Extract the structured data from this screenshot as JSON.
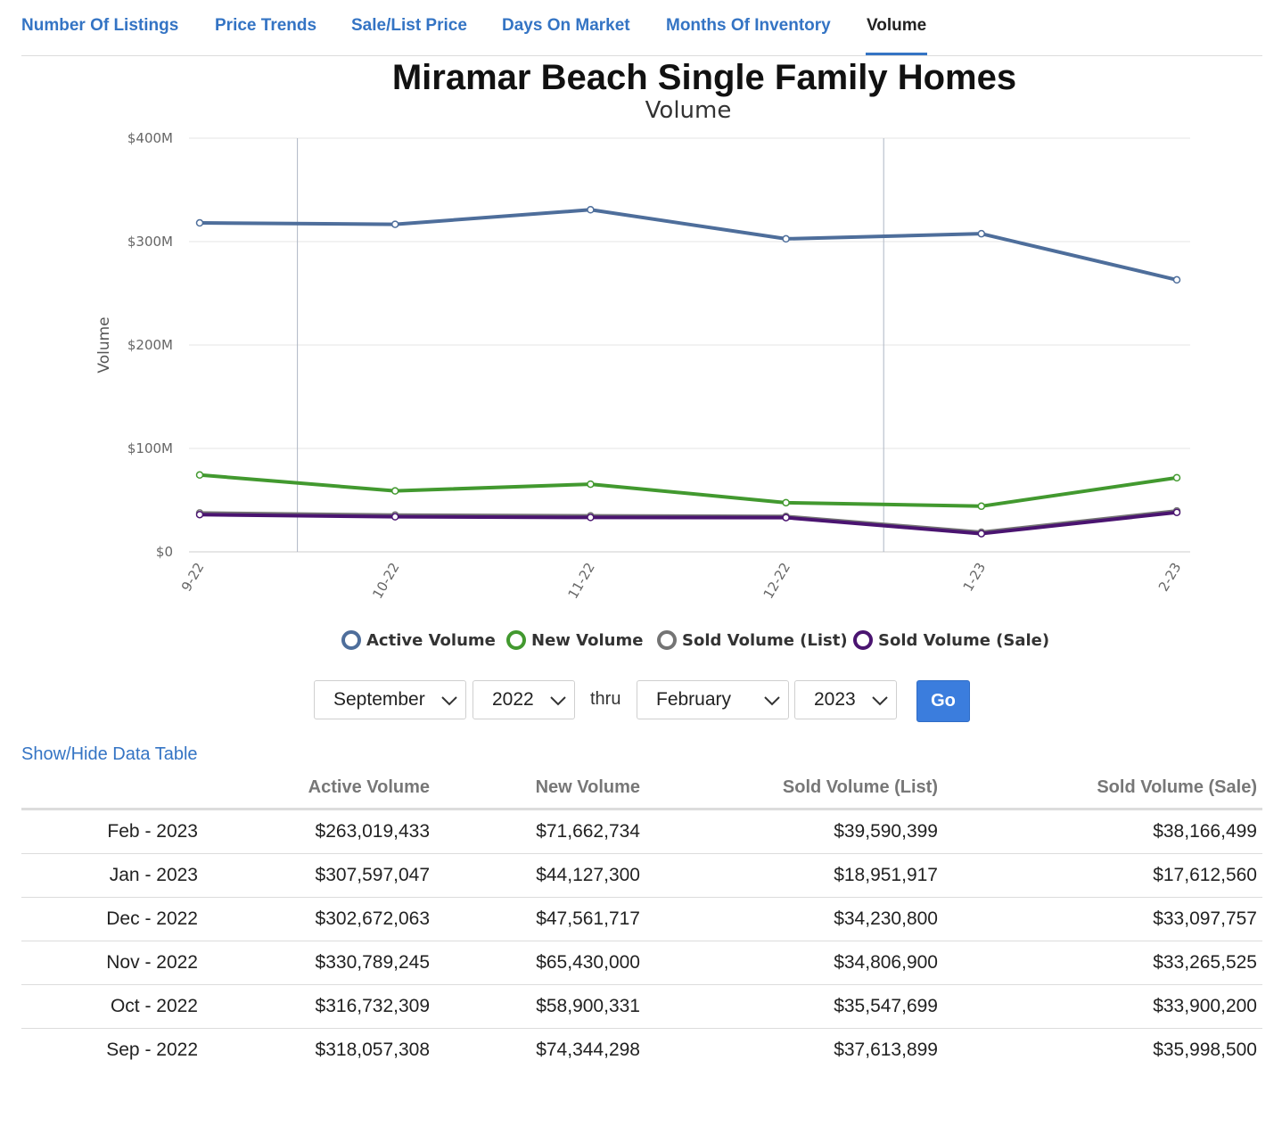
{
  "tabs": [
    {
      "label": "Number Of Listings",
      "active": false
    },
    {
      "label": "Price Trends",
      "active": false
    },
    {
      "label": "Sale/List Price",
      "active": false
    },
    {
      "label": "Days On Market",
      "active": false
    },
    {
      "label": "Months Of Inventory",
      "active": false
    },
    {
      "label": "Volume",
      "active": true
    }
  ],
  "chart_data": {
    "type": "line",
    "title": "Miramar Beach Single Family Homes",
    "subtitle": "Volume",
    "ylabel": "Volume",
    "xlabel": "",
    "ylim": [
      0,
      400
    ],
    "yticks": [
      0,
      100,
      200,
      300,
      400
    ],
    "ytick_labels": [
      "$0",
      "$100M",
      "$200M",
      "$300M",
      "$400M"
    ],
    "categories": [
      "9-22",
      "10-22",
      "11-22",
      "12-22",
      "1-23",
      "2-23"
    ],
    "series": [
      {
        "name": "Active Volume",
        "color": "#4e6e9b",
        "values": [
          318.06,
          316.73,
          330.79,
          302.67,
          307.6,
          263.02
        ]
      },
      {
        "name": "New Volume",
        "color": "#42992f",
        "values": [
          74.34,
          58.9,
          65.43,
          47.56,
          44.13,
          71.66
        ]
      },
      {
        "name": "Sold Volume (List)",
        "color": "#747474",
        "values": [
          37.61,
          35.55,
          34.81,
          34.23,
          18.95,
          39.59
        ]
      },
      {
        "name": "Sold Volume (Sale)",
        "color": "#4a1470",
        "values": [
          36.0,
          33.9,
          33.27,
          33.1,
          17.61,
          38.17
        ]
      }
    ],
    "legend": "bottom-center",
    "grid": true
  },
  "controls": {
    "from_month": "September",
    "from_year": "2022",
    "thru_label": "thru",
    "to_month": "February",
    "to_year": "2023",
    "go_label": "Go"
  },
  "table": {
    "toggle_label": "Show/Hide Data Table",
    "headers": [
      "",
      "Active Volume",
      "New Volume",
      "Sold Volume (List)",
      "Sold Volume (Sale)"
    ],
    "rows": [
      [
        "Feb - 2023",
        "$263,019,433",
        "$71,662,734",
        "$39,590,399",
        "$38,166,499"
      ],
      [
        "Jan - 2023",
        "$307,597,047",
        "$44,127,300",
        "$18,951,917",
        "$17,612,560"
      ],
      [
        "Dec - 2022",
        "$302,672,063",
        "$47,561,717",
        "$34,230,800",
        "$33,097,757"
      ],
      [
        "Nov - 2022",
        "$330,789,245",
        "$65,430,000",
        "$34,806,900",
        "$33,265,525"
      ],
      [
        "Oct - 2022",
        "$316,732,309",
        "$58,900,331",
        "$35,547,699",
        "$33,900,200"
      ],
      [
        "Sep - 2022",
        "$318,057,308",
        "$74,344,298",
        "$37,613,899",
        "$35,998,500"
      ]
    ]
  }
}
